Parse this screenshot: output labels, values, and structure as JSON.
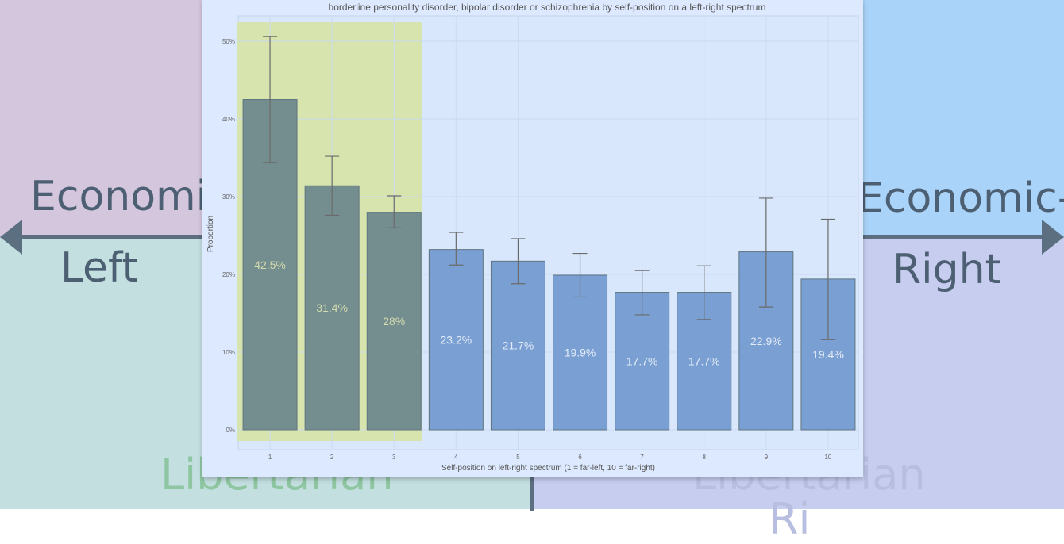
{
  "background": {
    "economic_left_title": "Economi",
    "economic_left_subtitle": "Left",
    "economic_right_title": "Economic-",
    "economic_right_subtitle": "Right",
    "libertarian_left": "Libertarian",
    "libertarian_right": "Libertarian",
    "libertarian_right_partial": "Ri"
  },
  "colors": {
    "left_bar": "#748d8f",
    "right_bar": "#7a9fd3",
    "highlight": "#d7e4ad",
    "plot_bg": "#d9e7fc",
    "error_bar": "#6b6b6b",
    "left_label": "#d4dcae",
    "right_label": "#e3ecf7"
  },
  "chart_data": {
    "type": "bar",
    "title": "borderline personality disorder, bipolar disorder or schizophrenia by self-position on a left-right spectrum",
    "xlabel": "Self-position on left-right spectrum (1 = far-left, 10 = far-right)",
    "ylabel": "Proportion",
    "ylim": [
      0,
      0.52
    ],
    "yticks": [
      0,
      0.1,
      0.2,
      0.3,
      0.4,
      0.5
    ],
    "ytick_labels": [
      "0%",
      "10%",
      "20%",
      "30%",
      "40%",
      "50%"
    ],
    "categories": [
      "1",
      "2",
      "3",
      "4",
      "5",
      "6",
      "7",
      "8",
      "9",
      "10"
    ],
    "values": [
      0.425,
      0.314,
      0.28,
      0.232,
      0.217,
      0.199,
      0.177,
      0.177,
      0.229,
      0.194
    ],
    "labels": [
      "42.5%",
      "31.4%",
      "28%",
      "23.2%",
      "21.7%",
      "19.9%",
      "17.7%",
      "17.7%",
      "22.9%",
      "19.4%"
    ],
    "error_low": [
      0.344,
      0.276,
      0.26,
      0.212,
      0.188,
      0.171,
      0.148,
      0.142,
      0.158,
      0.116
    ],
    "error_high": [
      0.506,
      0.352,
      0.301,
      0.254,
      0.246,
      0.227,
      0.205,
      0.211,
      0.298,
      0.271
    ],
    "highlighted_categories": [
      "1",
      "2",
      "3"
    ],
    "grid": true
  }
}
